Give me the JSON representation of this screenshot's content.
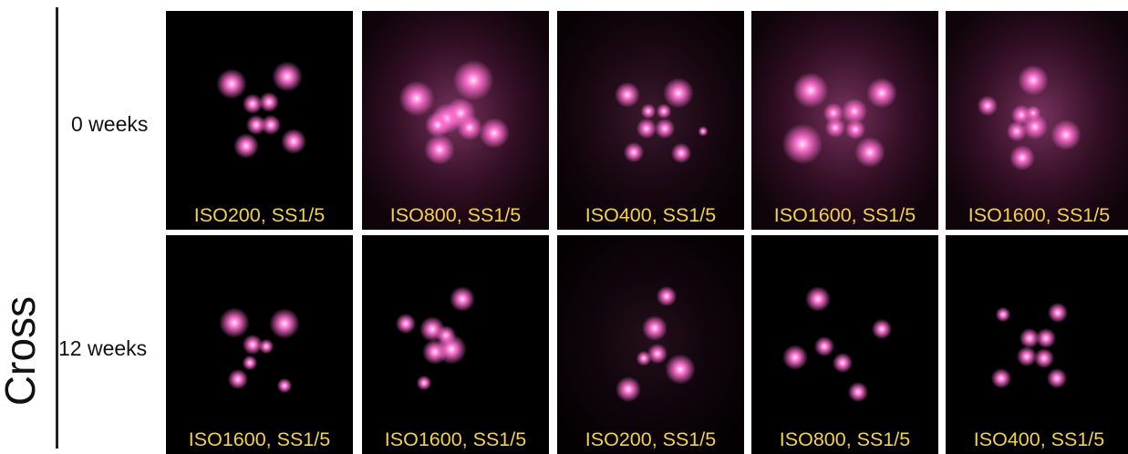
{
  "group_label": "Cross",
  "rows": [
    {
      "label": "0 weeks",
      "panels": [
        {
          "caption": "ISO200, SS1/5",
          "glow": "none"
        },
        {
          "caption": "ISO800, SS1/5",
          "glow": "strong"
        },
        {
          "caption": "ISO400, SS1/5",
          "glow": "medium"
        },
        {
          "caption": "ISO1600, SS1/5",
          "glow": "strong"
        },
        {
          "caption": "ISO1600, SS1/5",
          "glow": "strong"
        }
      ]
    },
    {
      "label": "12 weeks",
      "panels": [
        {
          "caption": "ISO1600, SS1/5",
          "glow": "none"
        },
        {
          "caption": "ISO1600, SS1/5",
          "glow": "none"
        },
        {
          "caption": "ISO200, SS1/5",
          "glow": "faint"
        },
        {
          "caption": "ISO800, SS1/5",
          "glow": "none"
        },
        {
          "caption": "ISO400, SS1/5",
          "glow": "none"
        }
      ]
    }
  ],
  "colors": {
    "background": "#000000",
    "spot": "#ff6fd0",
    "spot_core": "#ffe6fa",
    "caption": "#f2d24a"
  }
}
